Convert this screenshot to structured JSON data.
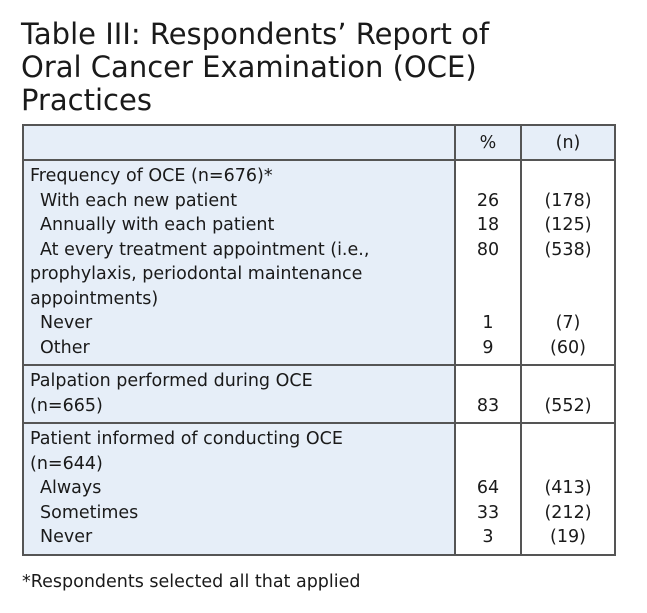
{
  "title": "Table III: Respondents’ Report of\nOral Cancer Examination (OCE)\nPractices",
  "columns": [
    "",
    "%",
    "(n)"
  ],
  "sections": [
    {
      "lines": [
        {
          "label": "Frequency of OCE (n=676)*",
          "pct": "",
          "n": "",
          "indent": false
        },
        {
          "label": "With each new patient",
          "pct": "26",
          "n": "(178)",
          "indent": true
        },
        {
          "label": "Annually with each patient",
          "pct": "18",
          "n": "(125)",
          "indent": true
        },
        {
          "label": "At every treatment appointment (i.e.,",
          "pct": "80",
          "n": "(538)",
          "indent": true
        },
        {
          "label": "prophylaxis,  periodontal maintenance",
          "pct": "",
          "n": "",
          "indent": false
        },
        {
          "label": "appointments)",
          "pct": "",
          "n": "",
          "indent": false
        },
        {
          "label": "Never",
          "pct": "1",
          "n": "(7)",
          "indent": true
        },
        {
          "label": "Other",
          "pct": "9",
          "n": "(60)",
          "indent": true
        }
      ]
    },
    {
      "lines": [
        {
          "label": "Palpation performed during OCE",
          "pct": "",
          "n": "",
          "indent": false
        },
        {
          "label": "(n=665)",
          "pct": "83",
          "n": "(552)",
          "indent": false
        }
      ]
    },
    {
      "lines": [
        {
          "label": "Patient informed of conducting OCE",
          "pct": "",
          "n": "",
          "indent": false
        },
        {
          "label": "(n=644)",
          "pct": "",
          "n": "",
          "indent": false
        },
        {
          "label": "Always",
          "pct": "64",
          "n": "(413)",
          "indent": true
        },
        {
          "label": "Sometimes",
          "pct": "33",
          "n": "(212)",
          "indent": true
        },
        {
          "label": "Never",
          "pct": "3",
          "n": "(19)",
          "indent": true
        }
      ]
    }
  ],
  "footnote": "*Respondents selected all that applied",
  "colors": {
    "label_bg": "#e6eef8",
    "border": "#555555"
  }
}
